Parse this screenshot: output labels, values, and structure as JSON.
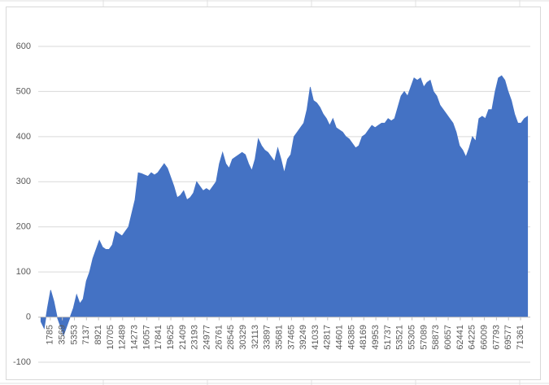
{
  "chart_data": {
    "type": "area",
    "color": "#4472c4",
    "grid": true,
    "x": [
      400,
      880,
      1360,
      1840,
      2320,
      2800,
      3280,
      3760,
      4240,
      4720,
      5200,
      5680,
      6160,
      6640,
      7120,
      7600,
      8080,
      8560,
      9040,
      9520,
      10000,
      10480,
      10960,
      11440,
      11920,
      12400,
      12880,
      13360,
      13840,
      14320,
      14800,
      15280,
      15760,
      16240,
      16720,
      17200,
      17680,
      18160,
      18640,
      19120,
      19600,
      20080,
      20560,
      21040,
      21520,
      22000,
      22480,
      22960,
      23440,
      23920,
      24400,
      24880,
      25360,
      25840,
      26320,
      26800,
      27280,
      27760,
      28240,
      28720,
      29200,
      29680,
      30160,
      30640,
      31120,
      31600,
      32080,
      32560,
      33040,
      33520,
      34000,
      34480,
      34960,
      35440,
      35920,
      36400,
      36880,
      37360,
      37840,
      38320,
      38800,
      39280,
      39760,
      40240,
      40720,
      41200,
      41680,
      42160,
      42640,
      43120,
      43600,
      44080,
      44560,
      45040,
      45520,
      46000,
      46480,
      46960,
      47440,
      47920,
      48400,
      48880,
      49360,
      49840,
      50320,
      50800,
      51280,
      51760,
      52240,
      52720,
      53200,
      53680,
      54160,
      54640,
      55120,
      55600,
      56080,
      56560,
      57040,
      57520,
      58000,
      58480,
      58960,
      59440,
      59920,
      60400,
      60880,
      61360,
      61840,
      62320,
      62800,
      63280,
      63760,
      64240,
      64720,
      65200,
      65680,
      66160,
      66640,
      67120,
      67600,
      68080,
      68560,
      69040,
      69520,
      70000,
      70480,
      70960,
      71440,
      71920,
      72400
    ],
    "values": [
      -10,
      -25,
      20,
      60,
      35,
      0,
      -20,
      -40,
      -20,
      0,
      20,
      50,
      30,
      40,
      80,
      100,
      130,
      150,
      170,
      155,
      150,
      150,
      160,
      190,
      185,
      180,
      190,
      200,
      230,
      260,
      320,
      318,
      315,
      312,
      320,
      315,
      320,
      330,
      340,
      330,
      310,
      290,
      265,
      270,
      280,
      260,
      265,
      275,
      300,
      290,
      280,
      285,
      280,
      290,
      300,
      340,
      365,
      340,
      330,
      350,
      355,
      360,
      365,
      360,
      340,
      325,
      350,
      395,
      380,
      370,
      365,
      355,
      345,
      375,
      350,
      320,
      350,
      360,
      400,
      410,
      420,
      430,
      460,
      510,
      480,
      475,
      465,
      450,
      440,
      425,
      440,
      420,
      415,
      410,
      400,
      395,
      385,
      375,
      380,
      400,
      405,
      415,
      425,
      420,
      425,
      430,
      430,
      440,
      435,
      440,
      465,
      490,
      500,
      490,
      510,
      530,
      525,
      530,
      510,
      520,
      525,
      500,
      490,
      470,
      460,
      450,
      440,
      430,
      410,
      380,
      370,
      355,
      375,
      400,
      390,
      440,
      445,
      440,
      460,
      460,
      500,
      530,
      535,
      525,
      500,
      480,
      450,
      430,
      430,
      440,
      445
    ],
    "xlim": [
      1,
      72800
    ],
    "xticks": [
      1785,
      3569,
      5353,
      7137,
      8921,
      10705,
      12489,
      14273,
      16057,
      17841,
      19625,
      21409,
      23193,
      24977,
      26761,
      28545,
      30329,
      32113,
      33897,
      35681,
      37465,
      39249,
      41033,
      42817,
      44601,
      46385,
      48169,
      49953,
      51737,
      53521,
      55305,
      57089,
      58873,
      60657,
      62441,
      64225,
      66009,
      67793,
      69577,
      71361
    ],
    "ylim": [
      -100,
      600
    ],
    "yticks": [
      -100,
      0,
      100,
      200,
      300,
      400,
      500,
      600
    ]
  }
}
